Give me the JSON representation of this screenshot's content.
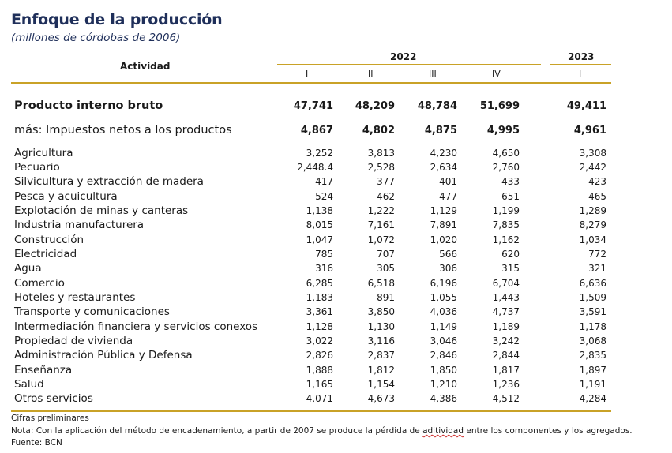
{
  "title": "Enfoque de la producción",
  "subtitle": "(millones de córdobas de 2006)",
  "header": {
    "activity_label": "Actividad",
    "years": [
      "2022",
      "2023"
    ],
    "quarters": [
      "I",
      "II",
      "III",
      "IV",
      "I"
    ]
  },
  "rows": [
    {
      "name": "Producto interno bruto",
      "values": [
        "47,741",
        "48,209",
        "48,784",
        "51,699",
        "49,411"
      ],
      "style": "bold"
    },
    {
      "name": "más: Impuestos netos a los productos",
      "values": [
        "4,867",
        "4,802",
        "4,875",
        "4,995",
        "4,961"
      ],
      "style": "tax"
    },
    {
      "name": "Agricultura",
      "values": [
        "3,252",
        "3,813",
        "4,230",
        "4,650",
        "3,308"
      ]
    },
    {
      "name": "Pecuario",
      "values": [
        "2,448.4",
        "2,528",
        "2,634",
        "2,760",
        "2,442"
      ]
    },
    {
      "name": "Silvicultura y extracción de madera",
      "values": [
        "417",
        "377",
        "401",
        "433",
        "423"
      ]
    },
    {
      "name": "Pesca y acuicultura",
      "values": [
        "524",
        "462",
        "477",
        "651",
        "465"
      ]
    },
    {
      "name": "Explotación de minas y canteras",
      "values": [
        "1,138",
        "1,222",
        "1,129",
        "1,199",
        "1,289"
      ]
    },
    {
      "name": "Industria manufacturera",
      "values": [
        "8,015",
        "7,161",
        "7,891",
        "7,835",
        "8,279"
      ]
    },
    {
      "name": "Construcción",
      "values": [
        "1,047",
        "1,072",
        "1,020",
        "1,162",
        "1,034"
      ]
    },
    {
      "name": "Electricidad",
      "values": [
        "785",
        "707",
        "566",
        "620",
        "772"
      ]
    },
    {
      "name": "Agua",
      "values": [
        "316",
        "305",
        "306",
        "315",
        "321"
      ]
    },
    {
      "name": "Comercio",
      "values": [
        "6,285",
        "6,518",
        "6,196",
        "6,704",
        "6,636"
      ]
    },
    {
      "name": "Hoteles y restaurantes",
      "values": [
        "1,183",
        "891",
        "1,055",
        "1,443",
        "1,509"
      ]
    },
    {
      "name": "Transporte y comunicaciones",
      "values": [
        "3,361",
        "3,850",
        "4,036",
        "4,737",
        "3,591"
      ]
    },
    {
      "name": "Intermediación financiera y servicios conexos",
      "values": [
        "1,128",
        "1,130",
        "1,149",
        "1,189",
        "1,178"
      ]
    },
    {
      "name": "Propiedad de vivienda",
      "values": [
        "3,022",
        "3,116",
        "3,046",
        "3,242",
        "3,068"
      ]
    },
    {
      "name": "Administración Pública y Defensa",
      "values": [
        "2,826",
        "2,837",
        "2,846",
        "2,844",
        "2,835"
      ]
    },
    {
      "name": "Enseñanza",
      "values": [
        "1,888",
        "1,812",
        "1,850",
        "1,817",
        "1,897"
      ]
    },
    {
      "name": "Salud",
      "values": [
        "1,165",
        "1,154",
        "1,210",
        "1,236",
        "1,191"
      ]
    },
    {
      "name": "Otros servicios",
      "values": [
        "4,071",
        "4,673",
        "4,386",
        "4,512",
        "4,284"
      ]
    }
  ],
  "footnotes": {
    "preliminary": "Cifras preliminares",
    "note_before": "Nota: Con la aplicación del método de encadenamiento, a partir de 2007 se produce la pérdida de ",
    "note_word": "aditividad",
    "note_after": " entre los componentes y los agregados.",
    "source": "Fuente: BCN"
  },
  "colors": {
    "title": "#1f2f5a",
    "rule": "#c9a227",
    "spellcheck": "#cc2a2a"
  }
}
